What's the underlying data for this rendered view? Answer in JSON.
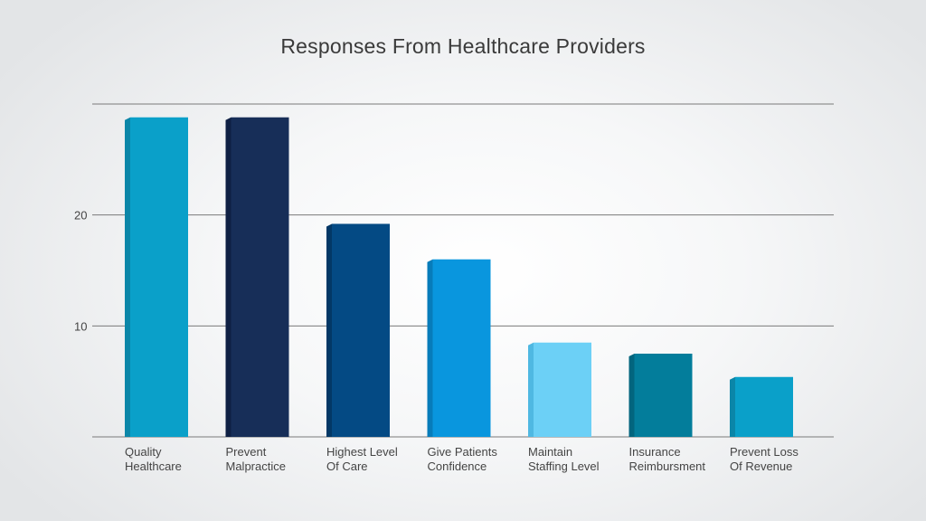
{
  "chart_data": {
    "type": "bar",
    "title": "Responses From Healthcare Providers",
    "xlabel": "",
    "ylabel": "",
    "ylim": [
      0,
      30
    ],
    "yticks": [
      10,
      20
    ],
    "grid": true,
    "categories": [
      [
        "Quality",
        "Healthcare"
      ],
      [
        "Prevent",
        "Malpractice"
      ],
      [
        "Highest Level",
        "Of Care"
      ],
      [
        "Give Patients",
        "Confidence"
      ],
      [
        "Maintain",
        "Staffing Level"
      ],
      [
        "Insurance",
        "Reimbursment"
      ],
      [
        "Prevent Loss",
        "Of Revenue"
      ]
    ],
    "values": [
      28.8,
      28.8,
      19.2,
      16.0,
      8.5,
      7.5,
      5.4
    ],
    "colors": [
      {
        "front": "#0aa0c9",
        "side": "#0b86a8"
      },
      {
        "front": "#172e58",
        "side": "#0f2044"
      },
      {
        "front": "#044a84",
        "side": "#033866"
      },
      {
        "front": "#0996de",
        "side": "#077cba"
      },
      {
        "front": "#6cd0f6",
        "side": "#4fb8e2"
      },
      {
        "front": "#037d9b",
        "side": "#02657e"
      },
      {
        "front": "#0aa0c9",
        "side": "#0b86a8"
      }
    ]
  }
}
